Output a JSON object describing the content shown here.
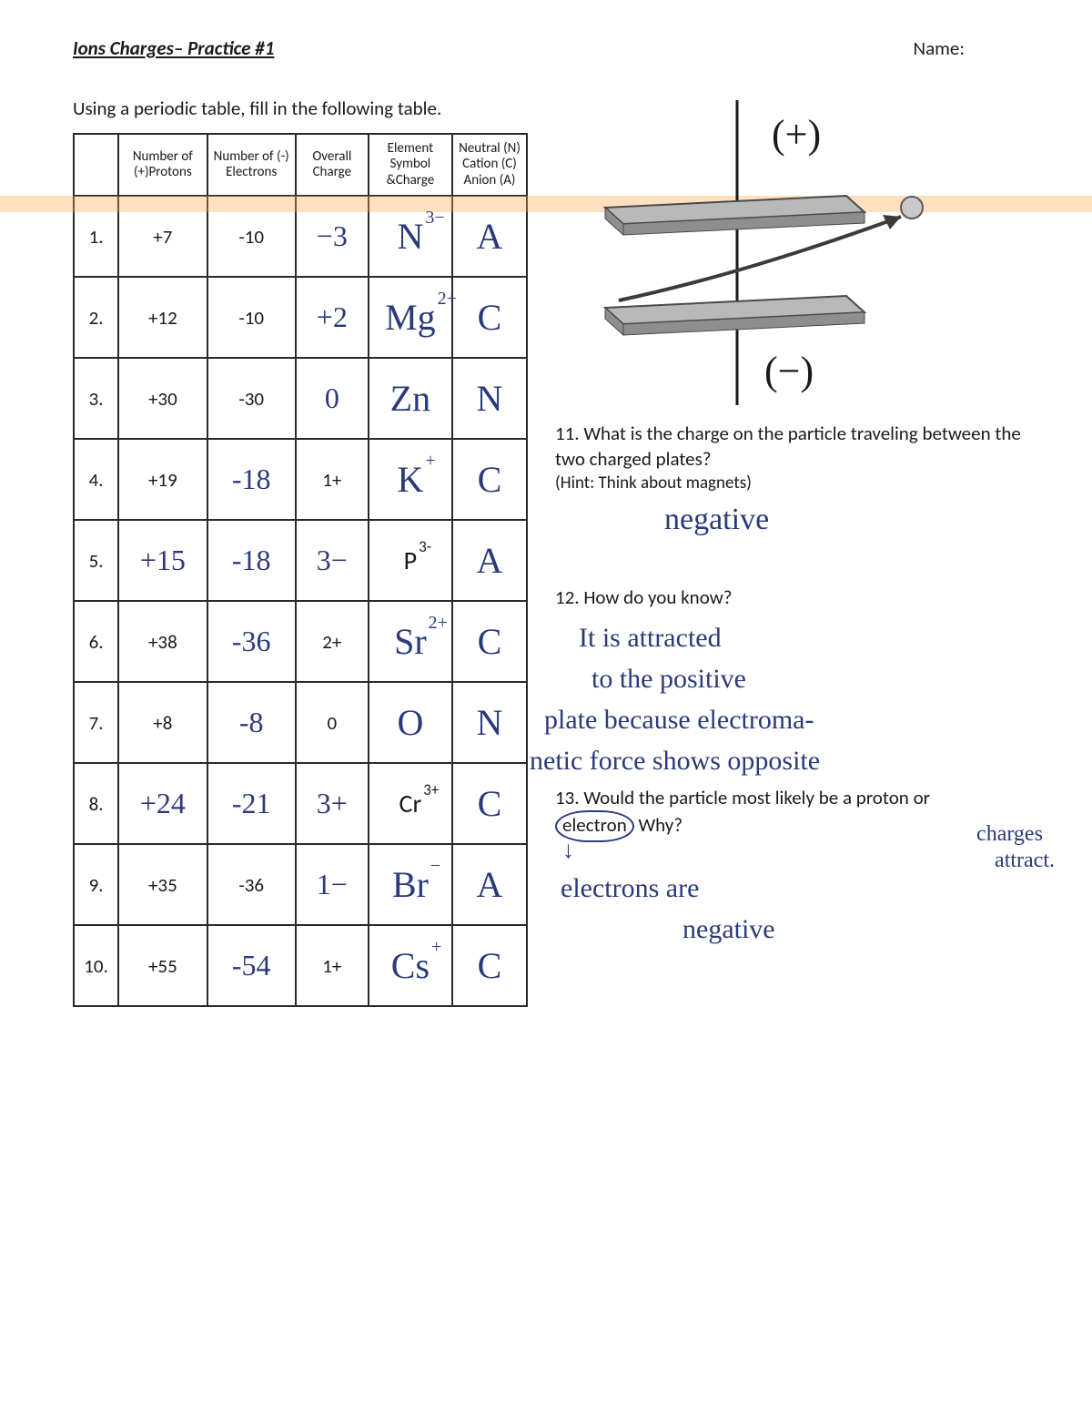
{
  "colors": {
    "ink": "#1a1a1a",
    "handwriting": "#2b3a7a",
    "table_border": "#2a2a2a",
    "scan_highlight": "rgba(255,170,80,0.35)",
    "plate_fill_top": "#bdbdbd",
    "plate_fill_bottom": "#8e8e8e",
    "plate_edge": "#4a4a4a",
    "arrow_stroke": "#3a3a3a",
    "ball_fill": "#c9c9c9"
  },
  "header": {
    "title": "Ions Charges– Practice #1",
    "name_label": "Name:"
  },
  "instructions": "Using a periodic table, fill in the following table.",
  "table": {
    "headers": {
      "num": "",
      "protons": "Number of (+)Protons",
      "electrons": "Number of (-) Electrons",
      "charge": "Overall Charge",
      "symbol": "Element Symbol &Charge",
      "type": "Neutral (N) Cation (C) Anion (A)"
    },
    "rows": [
      {
        "num": "1.",
        "protons": "+7",
        "protons_hand": false,
        "electrons": "-10",
        "electrons_hand": false,
        "charge": "−3",
        "charge_hand": true,
        "sym_base": "N",
        "sym_super": "3−",
        "sym_printed": false,
        "type": "A",
        "type_hand": true
      },
      {
        "num": "2.",
        "protons": "+12",
        "protons_hand": false,
        "electrons": "-10",
        "electrons_hand": false,
        "charge": "+2",
        "charge_hand": true,
        "sym_base": "Mg",
        "sym_super": "2+",
        "sym_printed": false,
        "type": "C",
        "type_hand": true
      },
      {
        "num": "3.",
        "protons": "+30",
        "protons_hand": false,
        "electrons": "-30",
        "electrons_hand": false,
        "charge": "0",
        "charge_hand": true,
        "sym_base": "Zn",
        "sym_super": "",
        "sym_printed": false,
        "type": "N",
        "type_hand": true
      },
      {
        "num": "4.",
        "protons": "+19",
        "protons_hand": false,
        "electrons": "-18",
        "electrons_hand": true,
        "charge": "1+",
        "charge_hand": false,
        "sym_base": "K",
        "sym_super": "+",
        "sym_printed": false,
        "type": "C",
        "type_hand": true
      },
      {
        "num": "5.",
        "protons": "+15",
        "protons_hand": true,
        "electrons": "-18",
        "electrons_hand": true,
        "charge": "3−",
        "charge_hand": true,
        "sym_base": "P",
        "sym_super": "3-",
        "sym_printed": true,
        "type": "A",
        "type_hand": true
      },
      {
        "num": "6.",
        "protons": "+38",
        "protons_hand": false,
        "electrons": "-36",
        "electrons_hand": true,
        "charge": "2+",
        "charge_hand": false,
        "sym_base": "Sr",
        "sym_super": "2+",
        "sym_printed": false,
        "type": "C",
        "type_hand": true
      },
      {
        "num": "7.",
        "protons": "+8",
        "protons_hand": false,
        "electrons": "-8",
        "electrons_hand": true,
        "charge": "0",
        "charge_hand": false,
        "sym_base": "O",
        "sym_super": "",
        "sym_printed": false,
        "type": "N",
        "type_hand": true
      },
      {
        "num": "8.",
        "protons": "+24",
        "protons_hand": true,
        "electrons": "-21",
        "electrons_hand": true,
        "charge": "3+",
        "charge_hand": true,
        "sym_base": "Cr",
        "sym_super": "3+",
        "sym_printed": true,
        "type": "C",
        "type_hand": true
      },
      {
        "num": "9.",
        "protons": "+35",
        "protons_hand": false,
        "electrons": "-36",
        "electrons_hand": false,
        "charge": "1−",
        "charge_hand": true,
        "sym_base": "Br",
        "sym_super": "−",
        "sym_printed": false,
        "type": "A",
        "type_hand": true
      },
      {
        "num": "10.",
        "protons": "+55",
        "protons_hand": false,
        "electrons": "-54",
        "electrons_hand": true,
        "charge": "1+",
        "charge_hand": false,
        "sym_base": "Cs",
        "sym_super": "+",
        "sym_printed": false,
        "type": "C",
        "type_hand": true
      }
    ]
  },
  "diagram": {
    "plus_label": "(+)",
    "minus_label": "(−)"
  },
  "q11": {
    "prompt": "11. What is the charge on the particle traveling between the two charged plates?",
    "hint": "(Hint: Think about magnets)",
    "answer": "negative"
  },
  "q12": {
    "prompt": "12.  How do you know?",
    "answer_lines": [
      "It is attracted",
      "to the positive",
      "plate because electroma-",
      "netic force shows opposite"
    ],
    "margin_note_lines": [
      "charges",
      "attract."
    ]
  },
  "q13": {
    "prompt_before": "13.  Would the particle most likely be a proton or ",
    "circled_word": "electron",
    "prompt_after": " Why?",
    "answer_lines": [
      "electrons   are",
      "negative"
    ]
  }
}
